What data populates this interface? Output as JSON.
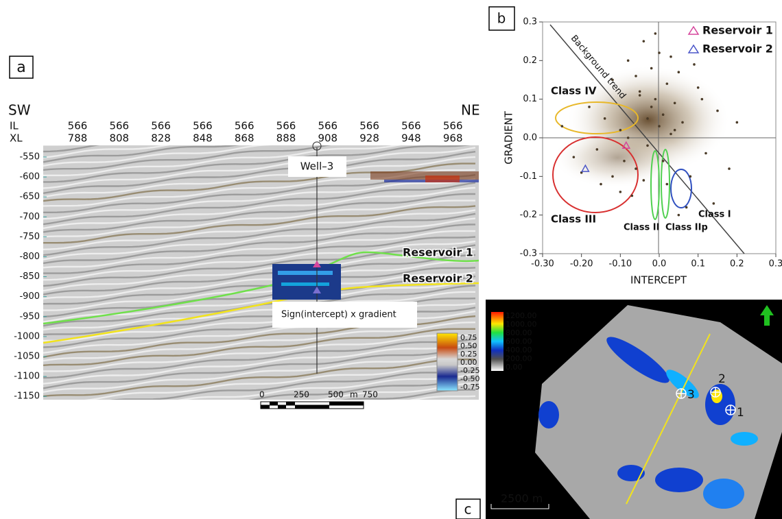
{
  "panel_a": {
    "label": "a",
    "left_dir": "SW",
    "right_dir": "NE",
    "row_labels": [
      "IL",
      "XL"
    ],
    "il": [
      "566",
      "566",
      "566",
      "566",
      "566",
      "566",
      "566",
      "566",
      "566",
      "566"
    ],
    "xl": [
      "788",
      "808",
      "828",
      "848",
      "868",
      "888",
      "908",
      "928",
      "948",
      "968"
    ],
    "depth_ticks": [
      -550,
      -600,
      -650,
      -700,
      -750,
      -800,
      -850,
      -900,
      -950,
      -1000,
      -1050,
      -1100,
      -1150
    ],
    "well": "Well–3",
    "horizons": [
      "Reservoir 1",
      "Reservoir 2"
    ],
    "inset_caption": "Sign(intercept) x gradient",
    "colorbar": [
      "0.75",
      "0.50",
      "0.25",
      "0.00",
      "-0.25",
      "-0.50",
      "-0.75"
    ],
    "scale_bar": [
      "0",
      "250",
      "500",
      "750"
    ],
    "scale_unit": "m"
  },
  "chart_data": {
    "type": "scatter",
    "label": "b",
    "xlabel": "INTERCEPT",
    "ylabel": "GRADIENT",
    "xlim": [
      -0.3,
      0.3
    ],
    "ylim": [
      -0.3,
      0.3
    ],
    "xticks": [
      {
        "value": -0.3,
        "label": "-0.30"
      },
      {
        "value": -0.2,
        "label": "-0.20"
      },
      {
        "value": -0.1,
        "label": "-0.10"
      },
      {
        "value": 0,
        "label": "0.0"
      },
      {
        "value": 0.1,
        "label": "0.1"
      },
      {
        "value": 0.2,
        "label": "0.2"
      },
      {
        "value": 0.3,
        "label": "0.3"
      }
    ],
    "yticks": [
      {
        "value": 0.3,
        "label": "0.3"
      },
      {
        "value": 0.2,
        "label": "0.2"
      },
      {
        "value": 0.1,
        "label": "0.1"
      },
      {
        "value": 0,
        "label": "0.0"
      },
      {
        "value": -0.1,
        "label": "-0.1"
      },
      {
        "value": -0.2,
        "label": "-0.2"
      },
      {
        "value": -0.3,
        "label": "-0.3"
      }
    ],
    "color": "#4a3b28",
    "x": [
      -0.25,
      -0.22,
      -0.18,
      -0.15,
      -0.12,
      -0.1,
      -0.08,
      -0.06,
      -0.05,
      -0.04,
      -0.03,
      -0.02,
      -0.01,
      0,
      0.01,
      0.02,
      0.03,
      0.04,
      0.05,
      0.06,
      0.08,
      0.1,
      0.12,
      0.15,
      -0.07,
      -0.03,
      0.0,
      0.02,
      -0.01,
      0.03,
      -0.05,
      0.07,
      0.09,
      -0.09,
      -0.12,
      -0.16,
      -0.2,
      -0.14,
      -0.1,
      -0.06,
      -0.04,
      0.01,
      0.05,
      0.11,
      0.14,
      0.18,
      0.2,
      -0.02,
      0.04,
      -0.08
    ],
    "y": [
      0.03,
      -0.05,
      0.08,
      -0.12,
      0.15,
      0.02,
      0.2,
      -0.08,
      0.12,
      0.25,
      0.05,
      0.18,
      0.1,
      0.22,
      0.06,
      0.14,
      0.01,
      0.09,
      0.17,
      0.04,
      -0.1,
      0.13,
      -0.04,
      0.07,
      -0.15,
      -0.02,
      0.03,
      -0.12,
      0.27,
      0.21,
      0.11,
      -0.18,
      0.19,
      -0.06,
      -0.1,
      -0.03,
      -0.09,
      0.05,
      -0.14,
      0.16,
      -0.11,
      -0.06,
      -0.2,
      0.1,
      -0.17,
      -0.08,
      0.04,
      0.08,
      0.02,
      0.0
    ],
    "series": [
      {
        "name": "Reservoir 1",
        "color": "#d6459c",
        "x": [
          -0.085
        ],
        "y": [
          -0.02
        ]
      },
      {
        "name": "Reservoir 2",
        "color": "#4a55c8",
        "x": [
          -0.19
        ],
        "y": [
          -0.08
        ]
      }
    ],
    "annotations": [
      "Background trend",
      "Class IV",
      "Class III",
      "Class II",
      "Class IIp",
      "Class I"
    ]
  },
  "panel_c": {
    "label": "c",
    "colorbar": [
      "1200.00",
      "1000.00",
      "800.00",
      "600.00",
      "400.00",
      "200.00",
      "0.00"
    ],
    "wells": [
      "1",
      "2",
      "3"
    ],
    "scale": "2500 m"
  }
}
